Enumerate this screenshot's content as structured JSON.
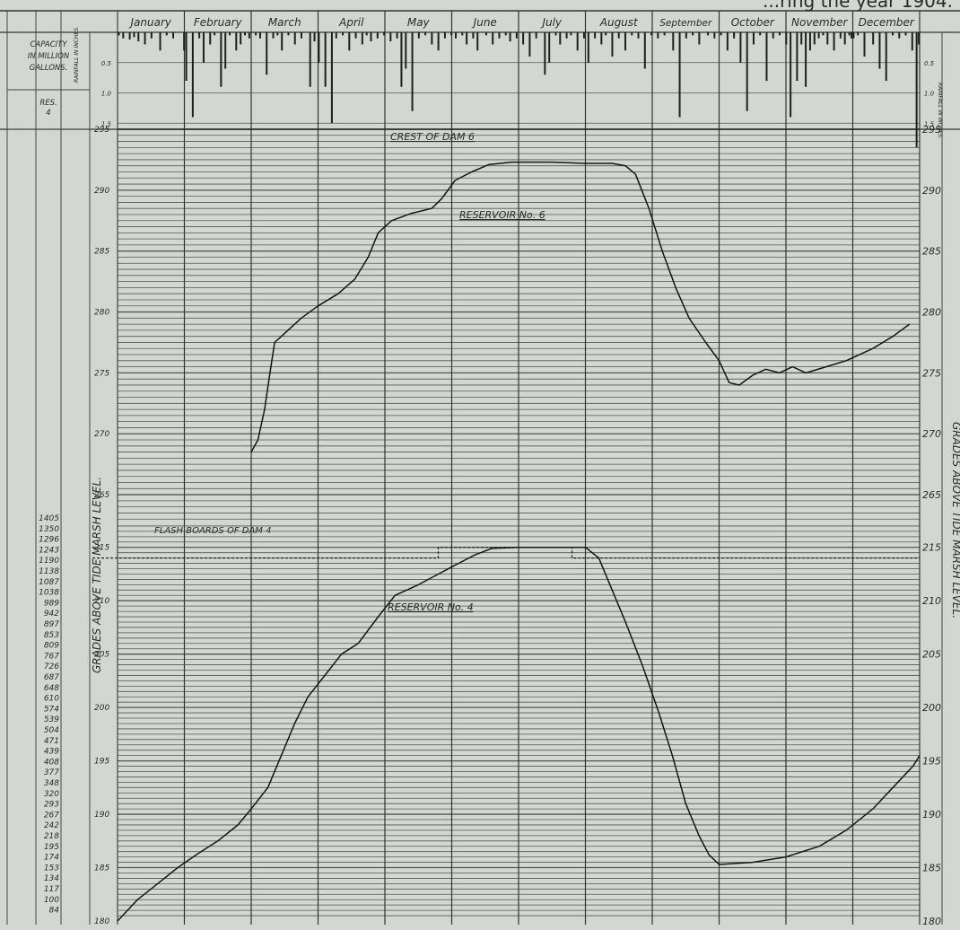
{
  "title_fragment": "...ring the year 1904.",
  "colors": {
    "paper": "#d4d6d4",
    "ink": "#2a2a2a",
    "grid": "#555555",
    "bars": "#1f1f1f"
  },
  "labels": {
    "capacity_header": [
      "CAPACITY",
      "IN MILLION",
      "GALLONS."
    ],
    "res_header": [
      "RES.",
      "4"
    ],
    "rainfall_axis": "RAINFALL IN INCHES.",
    "left_axis": "GRADES ABOVE TIDE MARSH LEVEL.",
    "right_axis": "GRADES ABOVE TIDE MARSH LEVEL.",
    "crest_dam6": "CREST OF DAM 6",
    "flash_boards_dam4": "FLASH BOARDS OF DAM 4",
    "reservoir6": "RESERVOIR No. 6",
    "reservoir4": "RESERVOIR No. 4"
  },
  "capacity_values": [
    "1405",
    "1350",
    "1296",
    "1243",
    "1190",
    "1138",
    "1087",
    "1038",
    "989",
    "942",
    "897",
    "853",
    "809",
    "767",
    "726",
    "687",
    "648",
    "610",
    "574",
    "539",
    "504",
    "471",
    "439",
    "408",
    "377",
    "348",
    "320",
    "293",
    "267",
    "242",
    "218",
    "195",
    "174",
    "153",
    "134",
    "117",
    "100",
    "84"
  ],
  "chart_data": {
    "type": "line",
    "months": [
      "January",
      "February",
      "March",
      "April",
      "May",
      "June",
      "July",
      "August",
      "September",
      "October",
      "November",
      "December"
    ],
    "rainfall": {
      "axis_ticks": [
        "0.5",
        "1.0",
        "1.5"
      ],
      "ylim": [
        0,
        1.6
      ],
      "daily_inches": [
        0.05,
        0,
        0.1,
        0,
        0,
        0.12,
        0,
        0.08,
        0,
        0.15,
        0,
        0,
        0.2,
        0,
        0,
        0.1,
        0,
        0,
        0,
        0.3,
        0,
        0,
        0.05,
        0,
        0,
        0.1,
        0,
        0,
        0,
        0,
        0.3,
        0.8,
        0,
        0,
        1.4,
        0,
        0,
        0.1,
        0,
        0.5,
        0,
        0,
        0.2,
        0,
        0.05,
        0,
        0,
        0.9,
        0,
        0.6,
        0,
        0.05,
        0,
        0,
        0.3,
        0,
        0.2,
        0,
        0.05,
        0,
        0.1,
        0,
        0,
        0.05,
        0,
        0.1,
        0,
        0,
        0.7,
        0,
        0,
        0.1,
        0,
        0.05,
        0,
        0.3,
        0,
        0,
        0.05,
        0,
        0,
        0.2,
        0,
        0,
        0.1,
        0,
        0,
        0,
        0.9,
        0,
        0.15,
        0,
        0.5,
        0,
        0,
        0.9,
        0,
        0,
        1.5,
        0,
        0.1,
        0,
        0,
        0.05,
        0,
        0,
        0.3,
        0,
        0,
        0.1,
        0,
        0,
        0.2,
        0,
        0.05,
        0,
        0.15,
        0,
        0,
        0.1,
        0,
        0,
        0.05,
        0,
        0,
        0.15,
        0,
        0,
        0.1,
        0,
        0.9,
        0,
        0.6,
        0,
        0,
        1.3,
        0,
        0,
        0.1,
        0,
        0,
        0.05,
        0,
        0,
        0.2,
        0,
        0,
        0.3,
        0,
        0,
        0.1,
        0,
        0,
        0.05,
        0,
        0.1,
        0,
        0,
        0.05,
        0,
        0.2,
        0,
        0,
        0.1,
        0,
        0.3,
        0,
        0,
        0,
        0.05,
        0,
        0,
        0.2,
        0,
        0,
        0.1,
        0,
        0,
        0.05,
        0,
        0.15,
        0,
        0,
        0.1,
        0,
        0,
        0.2,
        0,
        0,
        0.4,
        0,
        0,
        0.1,
        0,
        0,
        0,
        0.7,
        0,
        0.5,
        0,
        0,
        0.05,
        0,
        0.2,
        0,
        0,
        0.1,
        0,
        0.05,
        0,
        0,
        0.3,
        0,
        0,
        0.1,
        0,
        0.5,
        0,
        0,
        0.1,
        0,
        0,
        0.2,
        0,
        0.05,
        0,
        0,
        0.4,
        0,
        0,
        0.1,
        0,
        0,
        0.3,
        0,
        0,
        0.05,
        0,
        0,
        0.1,
        0,
        0,
        0.6,
        0,
        0,
        0.05,
        0,
        0,
        0.1,
        0,
        0,
        0.05,
        0,
        0,
        0,
        0.3,
        0,
        0,
        1.4,
        0,
        0,
        0.1,
        0,
        0,
        0.05,
        0,
        0,
        0.2,
        0,
        0,
        0,
        0.05,
        0,
        0,
        0.1,
        0,
        0,
        0.05,
        0,
        0,
        0.3,
        0,
        0,
        0.1,
        0,
        0,
        0.5,
        0,
        0,
        1.3,
        0,
        0,
        0.2,
        0,
        0,
        0.05,
        0,
        0,
        0.8,
        0,
        0,
        0.1,
        0,
        0,
        0.05,
        0,
        0,
        0.2,
        0,
        1.4,
        0,
        0,
        0.8,
        0,
        0.2,
        0,
        0.9,
        0,
        0.3,
        0,
        0.2,
        0,
        0.1,
        0,
        0.05,
        0,
        0.2,
        0,
        0,
        0.3,
        0,
        0,
        0.1,
        0,
        0.2,
        0,
        0.05,
        0.1,
        0.1,
        0,
        0.05,
        0,
        0,
        0.4,
        0,
        0,
        0,
        0.2,
        0,
        0,
        0.6,
        0,
        0,
        0.8,
        0,
        0,
        0.05,
        0,
        0,
        0.1,
        0,
        0,
        0.05,
        0,
        0,
        0.3,
        0,
        1.9,
        0.2
      ]
    },
    "upper_scale": {
      "ticks": [
        265,
        270,
        275,
        280,
        285,
        290,
        295
      ],
      "ylim": [
        262.5,
        295
      ]
    },
    "lower_scale": {
      "ticks": [
        180,
        185,
        190,
        195,
        200,
        205,
        210,
        215
      ],
      "ylim": [
        180,
        217.5
      ]
    },
    "crest_dam6": 295,
    "flash_boards_dam4": {
      "base": 214,
      "raised": 215,
      "raised_from": "June",
      "raised_to": "August"
    },
    "series": [
      {
        "name": "RESERVOIR No. 6",
        "scale": "upper",
        "points": [
          [
            2.0,
            268.5
          ],
          [
            2.1,
            269.5
          ],
          [
            2.2,
            272
          ],
          [
            2.28,
            275
          ],
          [
            2.35,
            277.5
          ],
          [
            2.55,
            278.5
          ],
          [
            2.75,
            279.5
          ],
          [
            3.0,
            280.5
          ],
          [
            3.3,
            281.5
          ],
          [
            3.55,
            282.7
          ],
          [
            3.75,
            284.5
          ],
          [
            3.9,
            286.5
          ],
          [
            4.1,
            287.5
          ],
          [
            4.4,
            288.1
          ],
          [
            4.7,
            288.5
          ],
          [
            4.85,
            289.3
          ],
          [
            5.05,
            290.8
          ],
          [
            5.3,
            291.5
          ],
          [
            5.55,
            292.1
          ],
          [
            5.9,
            292.3
          ],
          [
            6.5,
            292.3
          ],
          [
            7.0,
            292.2
          ],
          [
            7.4,
            292.2
          ],
          [
            7.6,
            292
          ],
          [
            7.75,
            291.3
          ],
          [
            7.95,
            288.5
          ],
          [
            8.15,
            285
          ],
          [
            8.35,
            282
          ],
          [
            8.55,
            279.5
          ],
          [
            8.8,
            277.5
          ],
          [
            9.0,
            276
          ],
          [
            9.15,
            274.2
          ],
          [
            9.3,
            274
          ],
          [
            9.5,
            274.8
          ],
          [
            9.7,
            275.3
          ],
          [
            9.9,
            275
          ],
          [
            10.1,
            275.5
          ],
          [
            10.3,
            275
          ],
          [
            10.6,
            275.5
          ],
          [
            10.9,
            276
          ],
          [
            11.3,
            277
          ],
          [
            11.6,
            278
          ],
          [
            11.85,
            279
          ]
        ]
      },
      {
        "name": "RESERVOIR No. 4",
        "scale": "lower",
        "points": [
          [
            0.0,
            180
          ],
          [
            0.3,
            182
          ],
          [
            0.6,
            183.5
          ],
          [
            0.9,
            185
          ],
          [
            1.2,
            186.3
          ],
          [
            1.5,
            187.5
          ],
          [
            1.8,
            189
          ],
          [
            2.0,
            190.5
          ],
          [
            2.25,
            192.5
          ],
          [
            2.45,
            195.5
          ],
          [
            2.65,
            198.5
          ],
          [
            2.85,
            201
          ],
          [
            3.1,
            203
          ],
          [
            3.35,
            205
          ],
          [
            3.6,
            206
          ],
          [
            3.9,
            208.5
          ],
          [
            4.15,
            210.5
          ],
          [
            4.5,
            211.5
          ],
          [
            4.8,
            212.5
          ],
          [
            5.1,
            213.5
          ],
          [
            5.35,
            214.3
          ],
          [
            5.6,
            214.9
          ],
          [
            6.0,
            215
          ],
          [
            6.5,
            215
          ],
          [
            7.0,
            215
          ],
          [
            7.2,
            214
          ],
          [
            7.4,
            211
          ],
          [
            7.6,
            208
          ],
          [
            7.85,
            204
          ],
          [
            8.1,
            199.5
          ],
          [
            8.3,
            195.5
          ],
          [
            8.5,
            191
          ],
          [
            8.7,
            188
          ],
          [
            8.85,
            186.2
          ],
          [
            9.0,
            185.3
          ],
          [
            9.5,
            185.5
          ],
          [
            10.0,
            186
          ],
          [
            10.5,
            187
          ],
          [
            10.9,
            188.5
          ],
          [
            11.3,
            190.5
          ],
          [
            11.6,
            192.5
          ],
          [
            11.9,
            194.5
          ],
          [
            12.0,
            195.5
          ]
        ]
      }
    ]
  }
}
